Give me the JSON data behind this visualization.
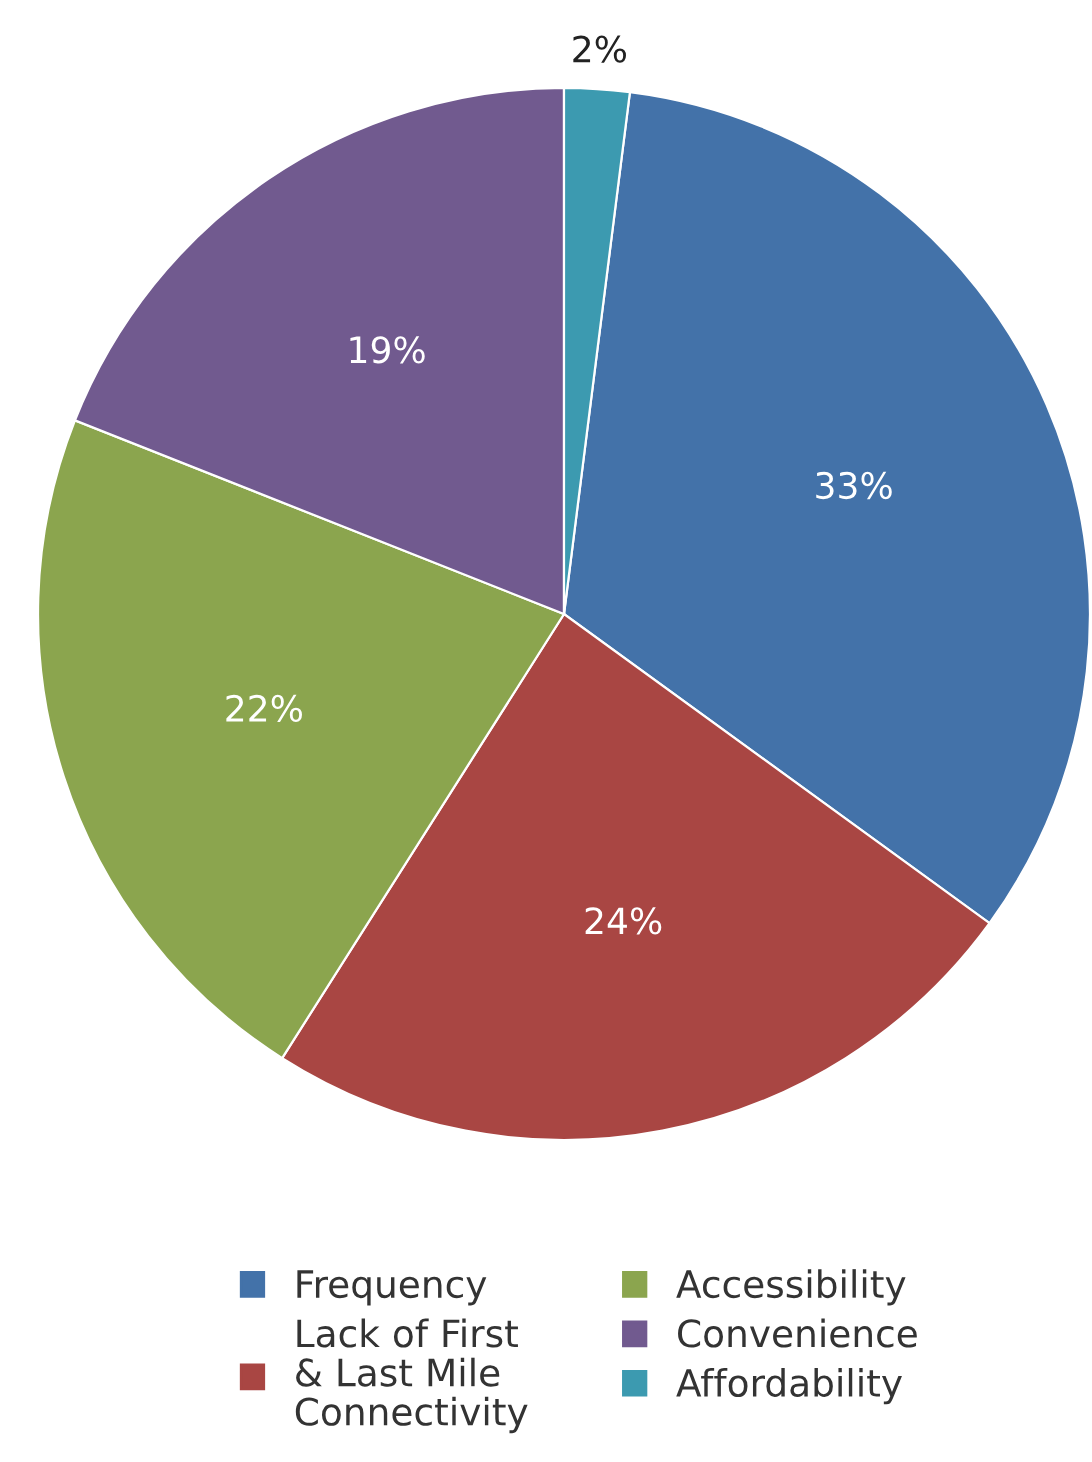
{
  "chart_data": {
    "type": "pie",
    "categories": [
      "Frequency",
      "Lack of First\n& Last Mile\nConnectivity",
      "Accessibility",
      "Convenience",
      "Affordability"
    ],
    "values": [
      33,
      24,
      22,
      19,
      2
    ],
    "value_labels": [
      "33%",
      "24%",
      "22%",
      "19%",
      "2%"
    ],
    "colors": [
      "#4372a9",
      "#a94643",
      "#8ba54e",
      "#715a8f",
      "#3c9ab0"
    ],
    "legend": "bottom"
  }
}
